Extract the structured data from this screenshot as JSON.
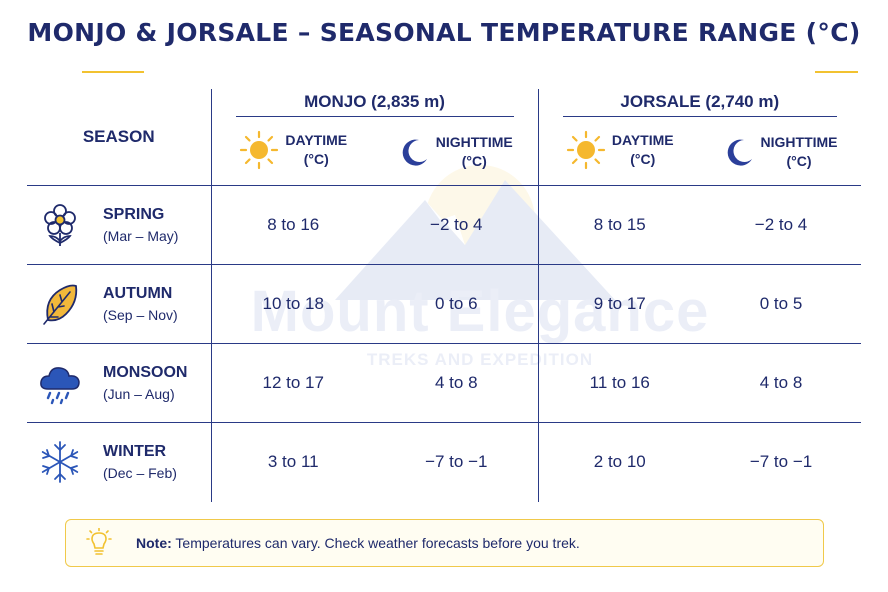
{
  "title": "MONJO & JORSALE – SEASONAL TEMPERATURE RANGE (°C)",
  "watermark": {
    "brand": "Mount Elegance",
    "tagline": "TREKS AND EXPEDITION"
  },
  "header": {
    "season_label": "SEASON",
    "locations": [
      {
        "name": "MONJO (2,835 m)"
      },
      {
        "name": "JORSALE (2,740 m)"
      }
    ],
    "day_label_1": "DAYTIME",
    "day_label_2": "(°C)",
    "night_label_1": "NIGHTTIME",
    "night_label_2": "(°C)"
  },
  "rows": [
    {
      "icon": "flower-icon",
      "season": "SPRING",
      "months": "(Mar – May)",
      "monjo_day": "8 to 16",
      "monjo_night": "−2 to 4",
      "jorsale_day": "8 to 15",
      "jorsale_night": "−2 to 4"
    },
    {
      "icon": "leaf-icon",
      "season": "AUTUMN",
      "months": "(Sep – Nov)",
      "monjo_day": "10 to 18",
      "monjo_night": "0 to 6",
      "jorsale_day": "9 to 17",
      "jorsale_night": "0 to 5"
    },
    {
      "icon": "rain-cloud-icon",
      "season": "MONSOON",
      "months": "(Jun – Aug)",
      "monjo_day": "12 to 17",
      "monjo_night": "4 to 8",
      "jorsale_day": "11 to 16",
      "jorsale_night": "4 to 8"
    },
    {
      "icon": "snowflake-icon",
      "season": "WINTER",
      "months": "(Dec – Feb)",
      "monjo_day": "3 to 11",
      "monjo_night": "−7 to −1",
      "jorsale_day": "2 to 10",
      "jorsale_night": "−7 to −1"
    }
  ],
  "note": {
    "label": "Note:",
    "text": "Temperatures can vary. Check weather forecasts before you trek."
  },
  "colors": {
    "navy": "#1f2a6b",
    "accent_yellow": "#f2c230",
    "sun": "#f5b82e",
    "moon": "#2b3f9a"
  }
}
